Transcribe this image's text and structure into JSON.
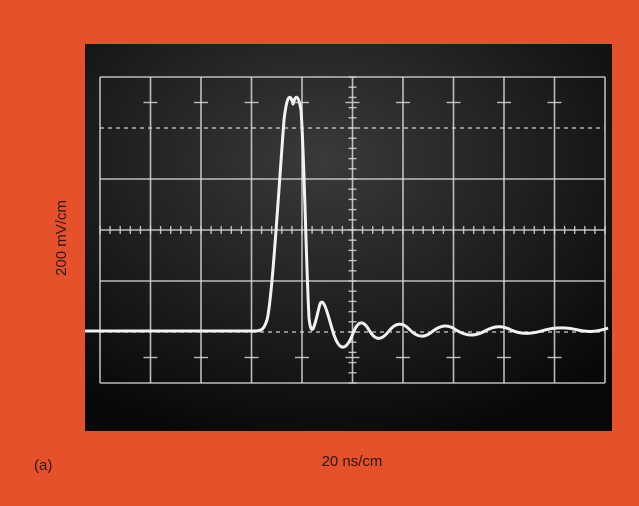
{
  "figure": {
    "y_axis_label": "200 mV/cm",
    "x_axis_label": "20 ns/cm",
    "panel_label": "(a)"
  }
}
